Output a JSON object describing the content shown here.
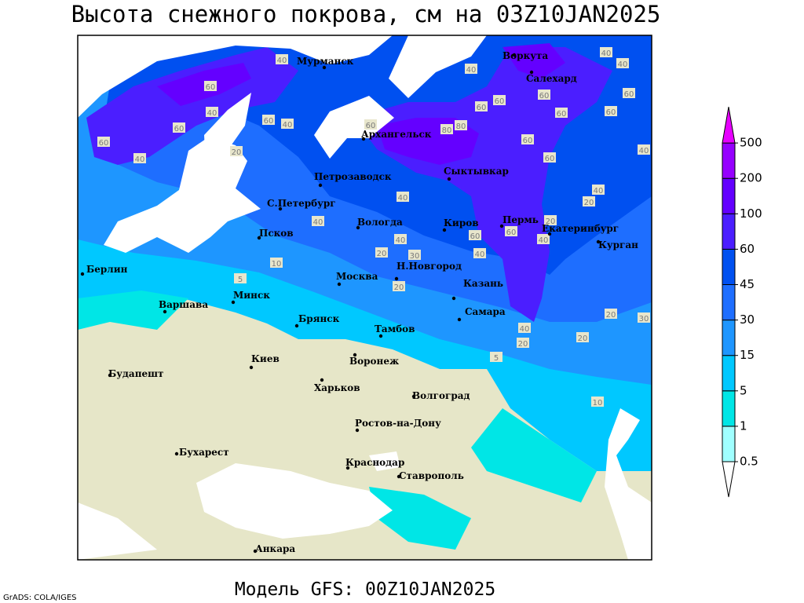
{
  "title": "Высота снежного покрова, см на 03Z10JAN2025",
  "subtitle": "Модель GFS: 00Z10JAN2025",
  "credit": "GrADS: COLA/IGES",
  "colorbar": {
    "levels": [
      0.5,
      1,
      5,
      15,
      30,
      45,
      60,
      100,
      200,
      500
    ],
    "colors": [
      "#ffffff",
      "#a0ffff",
      "#00e6e6",
      "#00c8ff",
      "#1e96ff",
      "#1e6eff",
      "#0050f0",
      "#4b1eff",
      "#6400ff",
      "#9600ff",
      "#e600ff"
    ]
  },
  "cities": [
    "Мурманск",
    "Воркута",
    "Салехард",
    "Архангельск",
    "Сыктывкар",
    "Петрозаводск",
    "С.Петербург",
    "Вологда",
    "Киров",
    "Пермь",
    "Екатеринбург",
    "Курган",
    "Псков",
    "Берлин",
    "Минск",
    "Варшава",
    "Москва",
    "Н.Новгород",
    "Казань",
    "Самара",
    "Брянск",
    "Тамбов",
    "Киев",
    "Воронеж",
    "Будапешт",
    "Харьков",
    "Волгоград",
    "Ростов-на-Дону",
    "Бухарест",
    "Краснодар",
    "Ставрополь",
    "Анкара"
  ],
  "contour_labels": [
    40,
    60,
    40,
    60,
    60,
    40,
    20,
    60,
    40,
    60,
    80,
    80,
    60,
    60,
    60,
    60,
    60,
    60,
    40,
    40,
    40,
    40,
    60,
    60,
    40,
    20,
    20,
    40,
    60,
    60,
    40,
    30,
    40,
    20,
    20,
    10,
    5,
    40,
    20,
    30,
    20,
    40,
    20,
    5,
    10,
    40
  ]
}
